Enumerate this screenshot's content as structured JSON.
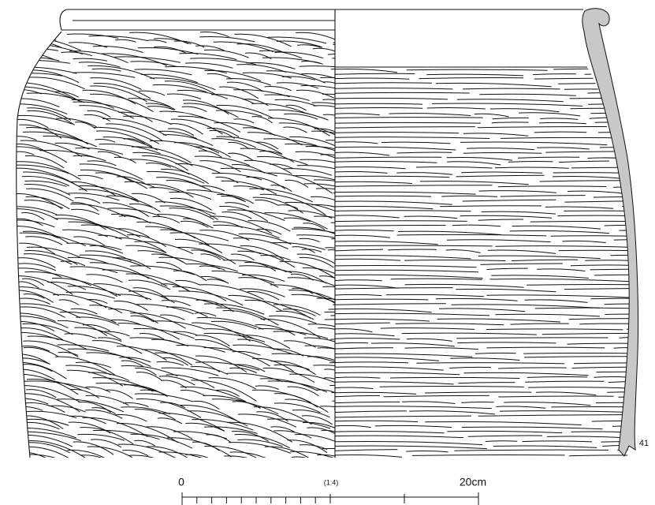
{
  "figure_number": "41",
  "scale": {
    "start": "0",
    "ratio": "(1:4)",
    "end": "20cm"
  }
}
